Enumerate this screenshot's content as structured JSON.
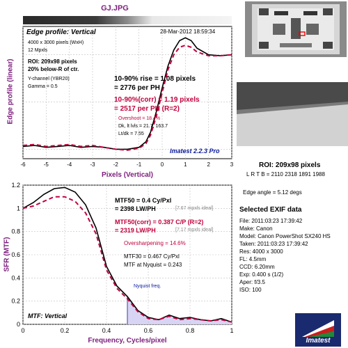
{
  "file_title": "GJ.JPG",
  "edge_panel": {
    "title": "Edge profile: Vertical",
    "date": "28-Mar-2012 18:59:34",
    "info_lines": [
      "4000 x 3000 pixels (WxH)",
      "12 Mpxls"
    ],
    "roi_lines": [
      "ROI: 209x98 pixels",
      "20% below-R of ctr."
    ],
    "channel_lines": [
      "Y-channel  (YBR20)",
      "Gamma = 0.5"
    ],
    "rise_lines": [
      "10-90% rise = 1.08 pixels",
      "= 2776 per PH"
    ],
    "corr_lines": [
      "10-90%(corr) = 1.19 pixels",
      "= 2517 per PH  (R=2)"
    ],
    "stats_lines": [
      "Overshoot = 18.4%",
      "Dk, lt lvls = 21.7, 163.7",
      "Lt/dk = 7.55"
    ],
    "version": "Imatest 2.2.3 Pro"
  },
  "mtf_panel": {
    "title": "MTF: Vertical",
    "mtf50_lines": [
      "MTF50 = 0.4 Cy/Pxl",
      "= 2398 LW/PH"
    ],
    "mtf50_ideal": "[7.67 mpxls ideal]",
    "mtf50corr_lines": [
      "MTF50(corr) = 0.387 C/P  (R=2)",
      "= 2319 LW/PH"
    ],
    "mtf50corr_ideal": "[7.17 mpxls ideal]",
    "oversharpening": "Oversharpening = 14.6%",
    "mtf30": "MTF30 = 0.467 Cy/Pxl",
    "nyquist_mtf": "MTF at Nyquist = 0.243",
    "nyquist_label": "Nyquist freq."
  },
  "right_panel": {
    "roi_title": "ROI: 209x98 pixels",
    "roi_coords": "L R T B = 2110 2318 1891 1988",
    "edge_angle": "Edge angle = 5.12 degs",
    "exif_title": "Selected EXIF data",
    "exif_lines": [
      "File:  2011:03:23 17:39:42",
      "Make:  Canon",
      "Model:  Canon PowerShot SX240 HS",
      "Taken:  2011:03:23 17:39:42",
      "Res:  4000 x 3000",
      "FL:   4.5mm",
      "CCD:  6.20mm",
      "Exp:   0.400 s  (1/2)",
      "Aper:  f/3.5",
      "ISO:   100"
    ],
    "logo_text": "Imatest"
  },
  "chart_data": [
    {
      "type": "line",
      "title": "Edge profile: Vertical",
      "xlabel": "Pixels (Vertical)",
      "ylabel": "Edge profile (linear)",
      "xlim": [
        -6,
        3
      ],
      "xticks": [
        -6,
        -5,
        -4,
        -3,
        -2,
        -1,
        0,
        1,
        2,
        3
      ],
      "grid": true,
      "series": [
        {
          "style": "solid black",
          "x": [
            -6,
            -5.5,
            -5,
            -4.5,
            -4,
            -3.5,
            -3,
            -2.5,
            -2,
            -1.5,
            -1,
            -0.7,
            -0.5,
            -0.25,
            0,
            0.25,
            0.5,
            0.75,
            1,
            1.25,
            1.5,
            2,
            2.5,
            3
          ],
          "y": [
            0.03,
            0.04,
            0.02,
            0.03,
            0.04,
            0.02,
            0.03,
            0.02,
            0.0,
            0.0,
            0.02,
            0.08,
            0.18,
            0.4,
            0.65,
            0.88,
            1.05,
            1.15,
            1.18,
            1.15,
            1.07,
            1.0,
            0.99,
            1.0
          ]
        },
        {
          "style": "dashed red",
          "x": [
            -6,
            -5.5,
            -5,
            -4.5,
            -4,
            -3.5,
            -3,
            -2.5,
            -2,
            -1.5,
            -1,
            -0.7,
            -0.5,
            -0.25,
            0,
            0.25,
            0.5,
            0.75,
            1,
            1.25,
            1.5,
            2,
            2.5,
            3
          ],
          "y": [
            0.04,
            0.05,
            0.03,
            0.04,
            0.05,
            0.03,
            0.04,
            0.02,
            0.0,
            -0.01,
            0.01,
            0.06,
            0.15,
            0.35,
            0.6,
            0.84,
            1.0,
            1.08,
            1.1,
            1.08,
            1.03,
            0.99,
            0.99,
            1.0
          ]
        }
      ]
    },
    {
      "type": "line",
      "title": "MTF: Vertical",
      "xlabel": "Frequency, Cycles/pixel",
      "ylabel": "SFR (MTF)",
      "xlim": [
        0,
        1
      ],
      "ylim": [
        0,
        1.2
      ],
      "xticks": [
        0,
        0.2,
        0.4,
        0.6,
        0.8,
        1
      ],
      "yticks": [
        0,
        0.2,
        0.4,
        0.6,
        0.8,
        1,
        1.2
      ],
      "grid": true,
      "series": [
        {
          "style": "solid black",
          "x": [
            0,
            0.05,
            0.1,
            0.15,
            0.2,
            0.25,
            0.3,
            0.35,
            0.4,
            0.45,
            0.5,
            0.55,
            0.6,
            0.65,
            0.7,
            0.75,
            0.8,
            0.85,
            0.9,
            0.95,
            1
          ],
          "y": [
            1.0,
            1.05,
            1.12,
            1.17,
            1.18,
            1.14,
            1.03,
            0.83,
            0.5,
            0.33,
            0.24,
            0.12,
            0.06,
            0.04,
            0.08,
            0.05,
            0.06,
            0.04,
            0.03,
            0.05,
            0.02
          ]
        },
        {
          "style": "dashed red",
          "x": [
            0,
            0.05,
            0.1,
            0.15,
            0.2,
            0.25,
            0.3,
            0.35,
            0.4,
            0.45,
            0.5,
            0.55,
            0.6,
            0.65,
            0.7,
            0.75,
            0.8,
            0.85,
            0.9,
            0.95,
            1
          ],
          "y": [
            1.0,
            1.02,
            1.06,
            1.1,
            1.1,
            1.06,
            0.96,
            0.78,
            0.47,
            0.31,
            0.22,
            0.11,
            0.05,
            0.04,
            0.07,
            0.04,
            0.05,
            0.04,
            0.03,
            0.04,
            0.02
          ]
        }
      ],
      "annotations": [
        "Nyquist freq."
      ],
      "nyquist": 0.5
    }
  ],
  "colors": {
    "purple": "#7b1c7b",
    "crimson": "#c0003c",
    "navy": "#0a1a9a",
    "nyquist_fill": "#d8d4f4",
    "grid": "#bfbfbf"
  },
  "icons": [
    "imatest-logo-icon",
    "test-chart-thumbnail",
    "roi-crop-thumbnail"
  ]
}
